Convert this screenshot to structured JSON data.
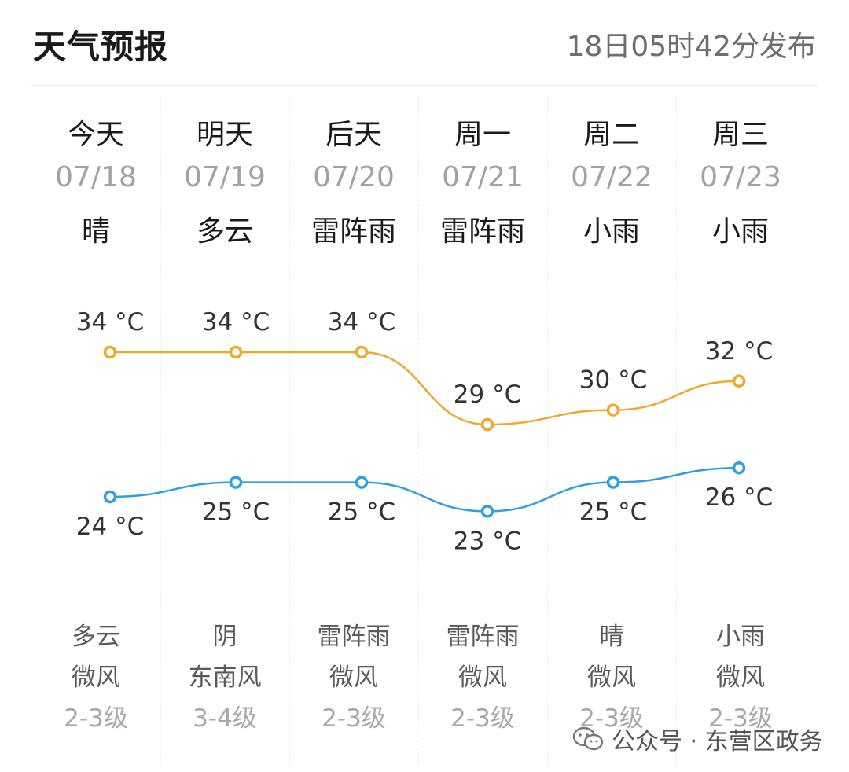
{
  "header": {
    "title": "天气预报",
    "published": "18日05时42分发布"
  },
  "days": [
    {
      "day": "今天",
      "date": "07/18",
      "weather_day": "晴",
      "weather_night": "多云",
      "wind_dir": "微风",
      "wind_level": "2-3级"
    },
    {
      "day": "明天",
      "date": "07/19",
      "weather_day": "多云",
      "weather_night": "阴",
      "wind_dir": "东南风",
      "wind_level": "3-4级"
    },
    {
      "day": "后天",
      "date": "07/20",
      "weather_day": "雷阵雨",
      "weather_night": "雷阵雨",
      "wind_dir": "微风",
      "wind_level": "2-3级"
    },
    {
      "day": "周一",
      "date": "07/21",
      "weather_day": "雷阵雨",
      "weather_night": "雷阵雨",
      "wind_dir": "微风",
      "wind_level": "2-3级"
    },
    {
      "day": "周二",
      "date": "07/22",
      "weather_day": "小雨",
      "weather_night": "晴",
      "wind_dir": "微风",
      "wind_level": "2-3级"
    },
    {
      "day": "周三",
      "date": "07/23",
      "weather_day": "小雨",
      "weather_night": "小雨",
      "wind_dir": "微风",
      "wind_level": "2-3级"
    }
  ],
  "chart_data": {
    "type": "line",
    "categories": [
      "07/18",
      "07/19",
      "07/20",
      "07/21",
      "07/22",
      "07/23"
    ],
    "series": [
      {
        "values": [
          34,
          34,
          34,
          29,
          30,
          32
        ],
        "labels": [
          "34 °C",
          "34 °C",
          "34 °C",
          "29 °C",
          "30 °C",
          "32 °C"
        ],
        "color": "#f0a82a"
      },
      {
        "values": [
          24,
          25,
          25,
          23,
          25,
          26
        ],
        "labels": [
          "24 °C",
          "25 °C",
          "25 °C",
          "23 °C",
          "25 °C",
          "26 °C"
        ],
        "color": "#2f9fde"
      }
    ]
  },
  "watermark": {
    "icon": "wechat-icon",
    "text": "公众号 · 东营区政务"
  }
}
